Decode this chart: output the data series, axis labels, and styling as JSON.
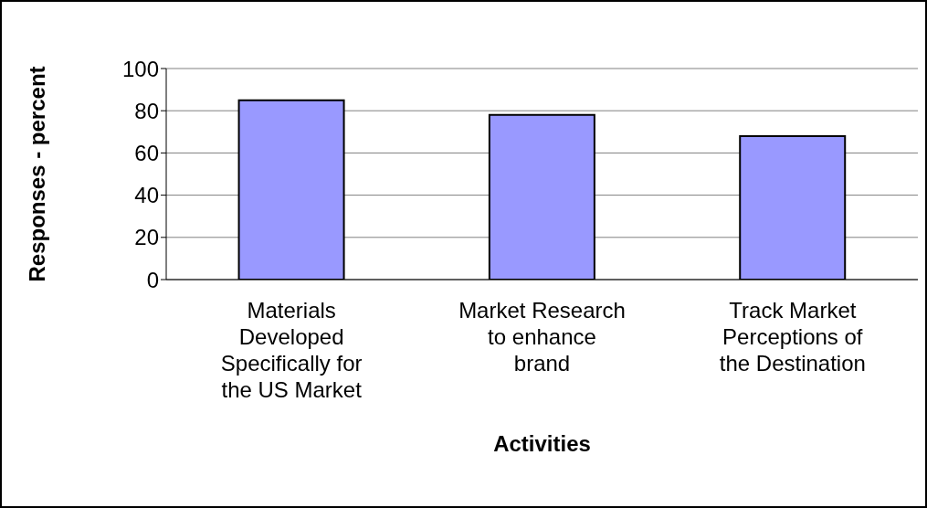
{
  "chart_data": {
    "type": "bar",
    "xlabel": "Activities",
    "ylabel": "Responses - percent",
    "categories": [
      "Materials Developed Specifically for the US Market",
      "Market Research to enhance brand",
      "Track Market Perceptions of the Destination"
    ],
    "values": [
      85,
      78,
      68
    ],
    "color": "#9999ff",
    "ylim": [
      0,
      100
    ],
    "yticks": [
      0,
      20,
      40,
      60,
      80,
      100
    ],
    "grid": "y",
    "legend": false
  }
}
